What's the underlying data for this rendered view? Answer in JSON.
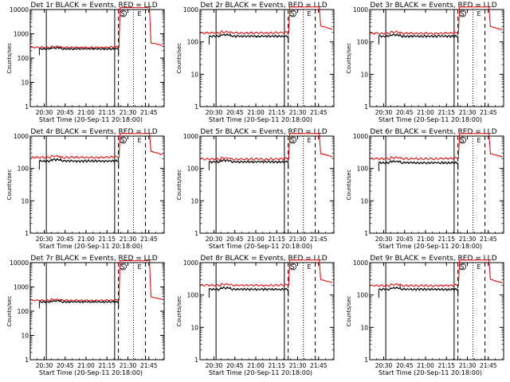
{
  "figure": {
    "background": "#ffffff",
    "events_color": "#000000",
    "lld_color": "#e00000"
  },
  "chart_data": [
    {
      "type": "line",
      "title": "Det 1r BLACK = Events, RED = LLD",
      "xlabel": "Start Time (20-Sep-11 20:18:00)",
      "ylabel": "Counts/sec",
      "yscale": "log",
      "ylim": [
        1,
        10000
      ],
      "xlim": [
        20.3,
        21.56
      ],
      "x_ticks": [
        "20:30",
        "20:45",
        "21:00",
        "21:15",
        "21:30",
        "21:45"
      ],
      "y_ticks": [
        "1",
        "10",
        "100",
        "1000",
        "10000"
      ],
      "markers": [
        "S",
        "E"
      ],
      "series": [
        {
          "name": "Events",
          "color": "#000000",
          "level": 240,
          "peak": 0,
          "tail": 0
        },
        {
          "name": "LLD",
          "color": "#e00000",
          "level": 275,
          "peak": 12000,
          "tail": 350
        }
      ]
    },
    {
      "type": "line",
      "title": "Det 2r BLACK = Events, RED = LLD",
      "xlabel": "Start Time (20-Sep-11 20:18:00)",
      "ylabel": "Counts/sec",
      "yscale": "log",
      "ylim": [
        1,
        1000
      ],
      "xlim": [
        20.3,
        21.56
      ],
      "x_ticks": [
        "20:30",
        "20:45",
        "21:00",
        "21:15",
        "21:30",
        "21:45"
      ],
      "y_ticks": [
        "1",
        "10",
        "100",
        "1000"
      ],
      "markers": [
        "S",
        "E"
      ],
      "series": [
        {
          "name": "Events",
          "color": "#000000",
          "level": 150,
          "peak": 0,
          "tail": 0
        },
        {
          "name": "LLD",
          "color": "#e00000",
          "level": 190,
          "peak": 1200,
          "tail": 260
        }
      ]
    },
    {
      "type": "line",
      "title": "Det 3r BLACK = Events, RED = LLD",
      "xlabel": "Start Time (20-Sep-11 20:18:00)",
      "ylabel": "Counts/sec",
      "yscale": "log",
      "ylim": [
        1,
        1000
      ],
      "xlim": [
        20.3,
        21.56
      ],
      "x_ticks": [
        "20:30",
        "20:45",
        "21:00",
        "21:15",
        "21:30",
        "21:45"
      ],
      "y_ticks": [
        "1",
        "10",
        "100",
        "1000"
      ],
      "markers": [
        "S",
        "E"
      ],
      "series": [
        {
          "name": "Events",
          "color": "#000000",
          "level": 150,
          "peak": 0,
          "tail": 0
        },
        {
          "name": "LLD",
          "color": "#e00000",
          "level": 185,
          "peak": 1200,
          "tail": 250
        }
      ]
    },
    {
      "type": "line",
      "title": "Det 4r BLACK = Events, RED = LLD",
      "xlabel": "Start Time (20-Sep-11 20:18:00)",
      "ylabel": "Counts/sec",
      "yscale": "log",
      "ylim": [
        1,
        1000
      ],
      "xlim": [
        20.3,
        21.56
      ],
      "x_ticks": [
        "20:30",
        "20:45",
        "21:00",
        "21:15",
        "21:30",
        "21:45"
      ],
      "y_ticks": [
        "1",
        "10",
        "100",
        "1000"
      ],
      "markers": [
        "S",
        "E"
      ],
      "series": [
        {
          "name": "Events",
          "color": "#000000",
          "level": 170,
          "peak": 0,
          "tail": 0
        },
        {
          "name": "LLD",
          "color": "#e00000",
          "level": 220,
          "peak": 1200,
          "tail": 280
        }
      ]
    },
    {
      "type": "line",
      "title": "Det 5r BLACK = Events, RED = LLD",
      "xlabel": "Start Time (20-Sep-11 20:18:00)",
      "ylabel": "Counts/sec",
      "yscale": "log",
      "ylim": [
        1,
        1000
      ],
      "xlim": [
        20.3,
        21.56
      ],
      "x_ticks": [
        "20:30",
        "20:45",
        "21:00",
        "21:15",
        "21:30",
        "21:45"
      ],
      "y_ticks": [
        "1",
        "10",
        "100",
        "1000"
      ],
      "markers": [
        "S",
        "E"
      ],
      "series": [
        {
          "name": "Events",
          "color": "#000000",
          "level": 160,
          "peak": 0,
          "tail": 0
        },
        {
          "name": "LLD",
          "color": "#e00000",
          "level": 195,
          "peak": 1200,
          "tail": 240
        }
      ]
    },
    {
      "type": "line",
      "title": "Det 6r BLACK = Events, RED = LLD",
      "xlabel": "Start Time (20-Sep-11 20:18:00)",
      "ylabel": "Counts/sec",
      "yscale": "log",
      "ylim": [
        1,
        1000
      ],
      "xlim": [
        20.3,
        21.56
      ],
      "x_ticks": [
        "20:30",
        "20:45",
        "21:00",
        "21:15",
        "21:30",
        "21:45"
      ],
      "y_ticks": [
        "1",
        "10",
        "100",
        "1000"
      ],
      "markers": [
        "S",
        "E"
      ],
      "series": [
        {
          "name": "Events",
          "color": "#000000",
          "level": 150,
          "peak": 0,
          "tail": 0
        },
        {
          "name": "LLD",
          "color": "#e00000",
          "level": 200,
          "peak": 1200,
          "tail": 240
        }
      ]
    },
    {
      "type": "line",
      "title": "Det 7r BLACK = Events, RED = LLD",
      "xlabel": "Start Time (20-Sep-11 20:18:00)",
      "ylabel": "Counts/sec",
      "yscale": "log",
      "ylim": [
        1,
        10000
      ],
      "xlim": [
        20.3,
        21.56
      ],
      "x_ticks": [
        "20:30",
        "20:45",
        "21:00",
        "21:15",
        "21:30",
        "21:45"
      ],
      "y_ticks": [
        "1",
        "10",
        "100",
        "1000",
        "10000"
      ],
      "markers": [
        "S",
        "E"
      ],
      "series": [
        {
          "name": "Events",
          "color": "#000000",
          "level": 240,
          "peak": 0,
          "tail": 0
        },
        {
          "name": "LLD",
          "color": "#e00000",
          "level": 280,
          "peak": 12000,
          "tail": 320
        }
      ]
    },
    {
      "type": "line",
      "title": "Det 8r BLACK = Events, RED = LLD",
      "xlabel": "Start Time (20-Sep-11 20:18:00)",
      "ylabel": "Counts/sec",
      "yscale": "log",
      "ylim": [
        1,
        1000
      ],
      "xlim": [
        20.3,
        21.56
      ],
      "x_ticks": [
        "20:30",
        "20:45",
        "21:00",
        "21:15",
        "21:30",
        "21:45"
      ],
      "y_ticks": [
        "1",
        "10",
        "100",
        "1000"
      ],
      "markers": [
        "S",
        "E"
      ],
      "series": [
        {
          "name": "Events",
          "color": "#000000",
          "level": 150,
          "peak": 0,
          "tail": 0
        },
        {
          "name": "LLD",
          "color": "#e00000",
          "level": 200,
          "peak": 1200,
          "tail": 250
        }
      ]
    },
    {
      "type": "line",
      "title": "Det 9r BLACK = Events, RED = LLD",
      "xlabel": "Start Time (20-Sep-11 20:18:00)",
      "ylabel": "Counts/sec",
      "yscale": "log",
      "ylim": [
        1,
        1000
      ],
      "xlim": [
        20.3,
        21.56
      ],
      "x_ticks": [
        "20:30",
        "20:45",
        "21:00",
        "21:15",
        "21:30",
        "21:45"
      ],
      "y_ticks": [
        "1",
        "10",
        "100",
        "1000"
      ],
      "markers": [
        "S",
        "E"
      ],
      "series": [
        {
          "name": "Events",
          "color": "#000000",
          "level": 150,
          "peak": 0,
          "tail": 0
        },
        {
          "name": "LLD",
          "color": "#e00000",
          "level": 195,
          "peak": 1200,
          "tail": 250
        }
      ]
    }
  ]
}
